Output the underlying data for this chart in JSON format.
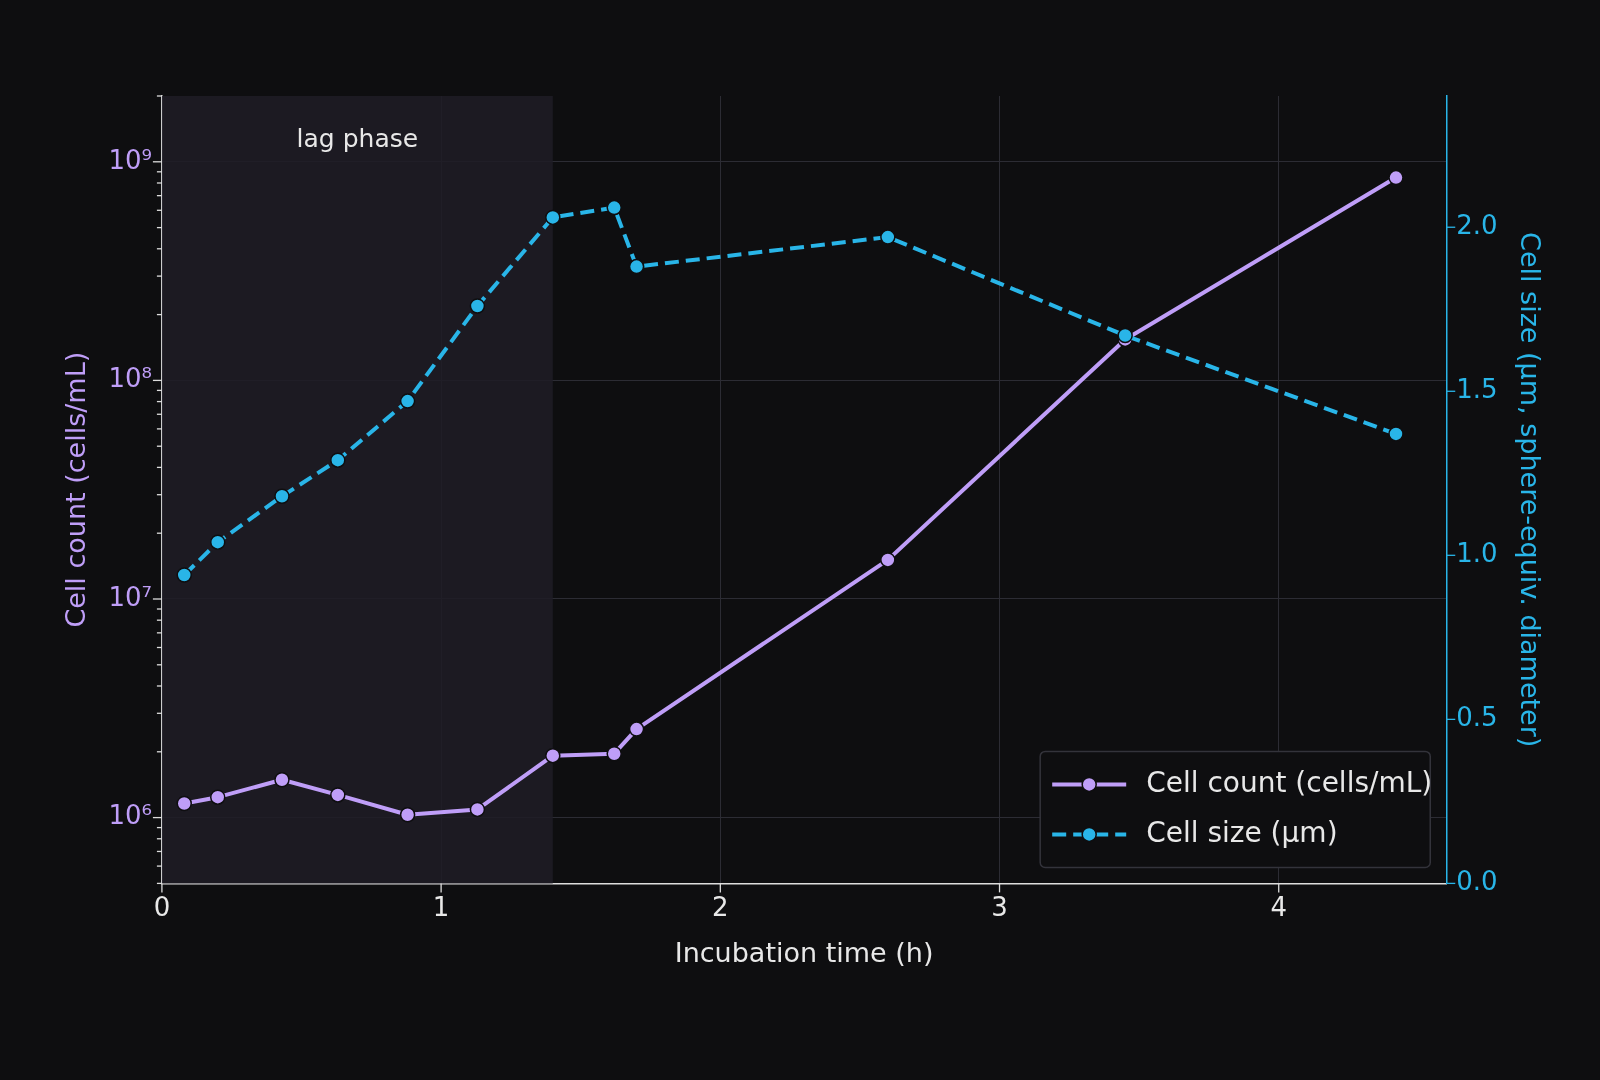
{
  "chart_data": {
    "type": "line",
    "xlabel": "Incubation time (h)",
    "ylabel": "Cell count (cells/mL)",
    "y2label": "Cell size (µm, sphere-equiv. diameter)",
    "x": [
      0.08,
      0.2,
      0.43,
      0.63,
      0.88,
      1.13,
      1.4,
      1.62,
      1.7,
      2.6,
      3.45,
      4.42
    ],
    "series": [
      {
        "name": "Cell count (cells/mL)",
        "color": "#bf9ef8",
        "line_style": "solid",
        "values": [
          1160000,
          1240000,
          1490000,
          1270000,
          1030000,
          1090000,
          1920000,
          1960000,
          2540000,
          15100000,
          154000000,
          847000000
        ]
      },
      {
        "name": "Cell size (µm)",
        "color": "#29b5e8",
        "line_style": "dashed",
        "axis": "y2",
        "values": [
          0.94,
          1.04,
          1.18,
          1.29,
          1.47,
          1.76,
          2.03,
          2.06,
          1.88,
          1.97,
          1.67,
          1.37
        ]
      }
    ],
    "log": "y",
    "xlim": [
      0,
      4.6
    ],
    "xticks": [
      0,
      1,
      2,
      3,
      4
    ],
    "ylim": [
      500000,
      2000000000
    ],
    "yticks": [
      {
        "value": 500000,
        "label": null
      },
      {
        "value": 600000,
        "label": null
      },
      {
        "value": 700000,
        "label": null
      },
      {
        "value": 800000,
        "label": null
      },
      {
        "value": 900000,
        "label": null
      },
      {
        "value": 1000000,
        "label": "10⁶"
      },
      {
        "value": 2000000,
        "label": null
      },
      {
        "value": 3000000,
        "label": null
      },
      {
        "value": 4000000,
        "label": null
      },
      {
        "value": 5000000,
        "label": null
      },
      {
        "value": 6000000,
        "label": null
      },
      {
        "value": 7000000,
        "label": null
      },
      {
        "value": 8000000,
        "label": null
      },
      {
        "value": 9000000,
        "label": null
      },
      {
        "value": 10000000,
        "label": "10⁷"
      },
      {
        "value": 20000000,
        "label": null
      },
      {
        "value": 30000000,
        "label": null
      },
      {
        "value": 40000000,
        "label": null
      },
      {
        "value": 50000000,
        "label": null
      },
      {
        "value": 60000000,
        "label": null
      },
      {
        "value": 70000000,
        "label": null
      },
      {
        "value": 80000000,
        "label": null
      },
      {
        "value": 90000000,
        "label": null
      },
      {
        "value": 100000000,
        "label": "10⁸"
      },
      {
        "value": 200000000,
        "label": null
      },
      {
        "value": 300000000,
        "label": null
      },
      {
        "value": 400000000,
        "label": null
      },
      {
        "value": 500000000,
        "label": null
      },
      {
        "value": 600000000,
        "label": null
      },
      {
        "value": 700000000,
        "label": null
      },
      {
        "value": 800000000,
        "label": null
      },
      {
        "value": 900000000,
        "label": null
      },
      {
        "value": 1000000000,
        "label": "10⁹"
      },
      {
        "value": 2000000000,
        "label": null
      }
    ],
    "y2lim": [
      0,
      2.4
    ],
    "y2ticks": [
      {
        "value": 0,
        "label": "0.0"
      },
      {
        "value": 0.5,
        "label": "0.5"
      },
      {
        "value": 1,
        "label": "1.0"
      },
      {
        "value": 1.5,
        "label": "1.5"
      },
      {
        "value": 2,
        "label": "2.0"
      }
    ],
    "bands": [
      {
        "axis": "x",
        "from": 0,
        "to": 1.4,
        "label": "lag phase",
        "color": "#1f1c26"
      }
    ],
    "grid": true,
    "legend": "bottom right",
    "marker": "circle"
  }
}
